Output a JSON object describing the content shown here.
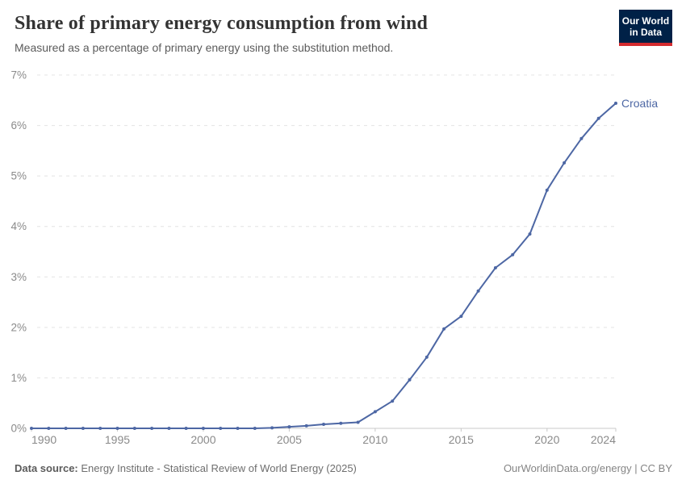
{
  "header": {
    "title": "Share of primary energy consumption from wind",
    "subtitle": "Measured as a percentage of primary energy using the substitution method."
  },
  "logo": {
    "line1": "Our World",
    "line2": "in Data"
  },
  "chart_data": {
    "type": "line",
    "title": "Share of primary energy consumption from wind",
    "subtitle": "Measured as a percentage of primary energy using the substitution method.",
    "xlabel": "",
    "ylabel": "",
    "xlim": [
      1990,
      2024
    ],
    "ylim": [
      0,
      7
    ],
    "grid": "horizontal-dashed",
    "legend_position": "end-of-line-label",
    "xticks": [
      1990,
      1995,
      2000,
      2005,
      2010,
      2015,
      2020,
      2024
    ],
    "ytick_values": [
      0,
      1,
      2,
      3,
      4,
      5,
      6,
      7
    ],
    "ytick_labels": [
      "0%",
      "1%",
      "2%",
      "3%",
      "4%",
      "5%",
      "6%",
      "7%"
    ],
    "series": [
      {
        "name": "Croatia",
        "color": "#4d67a4",
        "x": [
          1990,
          1991,
          1992,
          1993,
          1994,
          1995,
          1996,
          1997,
          1998,
          1999,
          2000,
          2001,
          2002,
          2003,
          2004,
          2005,
          2006,
          2007,
          2008,
          2009,
          2010,
          2011,
          2012,
          2013,
          2014,
          2015,
          2016,
          2017,
          2018,
          2019,
          2020,
          2021,
          2022,
          2023,
          2024
        ],
        "values": [
          0,
          0,
          0,
          0,
          0,
          0,
          0,
          0,
          0,
          0,
          0,
          0,
          0,
          0,
          0.01,
          0.03,
          0.05,
          0.08,
          0.1,
          0.12,
          0.33,
          0.54,
          0.96,
          1.41,
          1.97,
          2.22,
          2.72,
          3.18,
          3.44,
          3.85,
          4.72,
          5.26,
          5.74,
          6.14,
          6.44
        ]
      }
    ]
  },
  "footer": {
    "datasource_label": "Data source:",
    "datasource_text": " Energy Institute - Statistical Review of World Energy (2025)",
    "credit": "OurWorldinData.org/energy | CC BY"
  },
  "colors": {
    "line": "#4d67a4",
    "title": "#333333",
    "subtitle": "#5b5b5b",
    "axis_text": "#8a8a8a",
    "grid": "#e4e4e4",
    "axis_line": "#c8c8c8",
    "logo_bg": "#002147",
    "logo_accent": "#d42b2f"
  }
}
